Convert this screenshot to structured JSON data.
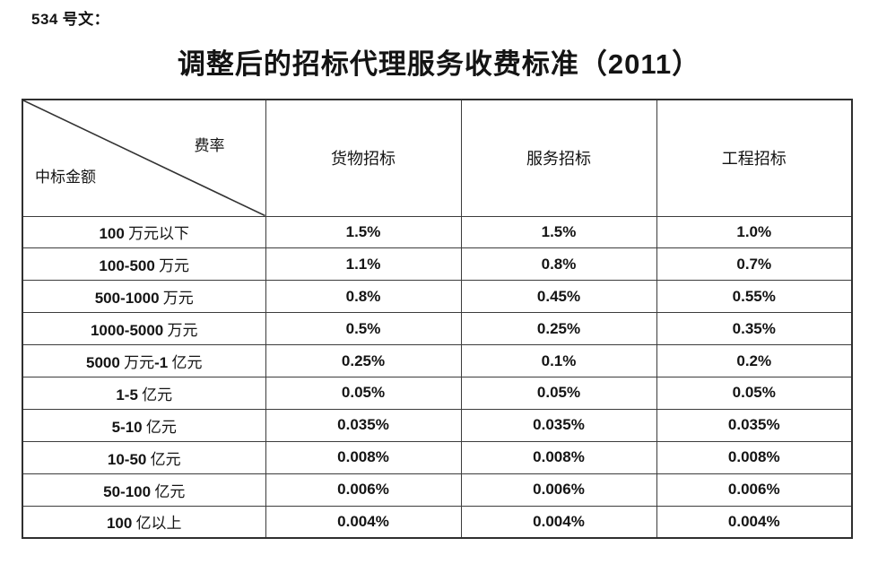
{
  "page": {
    "doc_label": "534 号文：",
    "title": "调整后的招标代理服务收费标准（2011）"
  },
  "colors": {
    "text": "#141414",
    "border": "#3c3c3c",
    "background": "#ffffff"
  },
  "table": {
    "corner": {
      "top_right": "费率",
      "bottom_left": "中标金额"
    },
    "columns": [
      "货物招标",
      "服务招标",
      "工程招标"
    ],
    "rows": [
      {
        "amount": "100 万元以下",
        "goods": "1.5%",
        "services": "1.5%",
        "engineering": "1.0%"
      },
      {
        "amount": "100-500 万元",
        "goods": "1.1%",
        "services": "0.8%",
        "engineering": "0.7%"
      },
      {
        "amount": "500-1000 万元",
        "goods": "0.8%",
        "services": "0.45%",
        "engineering": "0.55%"
      },
      {
        "amount": "1000-5000 万元",
        "goods": "0.5%",
        "services": "0.25%",
        "engineering": "0.35%"
      },
      {
        "amount": "5000 万元-1 亿元",
        "goods": "0.25%",
        "services": "0.1%",
        "engineering": "0.2%"
      },
      {
        "amount": "1-5 亿元",
        "goods": "0.05%",
        "services": "0.05%",
        "engineering": "0.05%"
      },
      {
        "amount": "5-10 亿元",
        "goods": "0.035%",
        "services": "0.035%",
        "engineering": "0.035%"
      },
      {
        "amount": "10-50 亿元",
        "goods": "0.008%",
        "services": "0.008%",
        "engineering": "0.008%"
      },
      {
        "amount": "50-100 亿元",
        "goods": "0.006%",
        "services": "0.006%",
        "engineering": "0.006%"
      },
      {
        "amount": "100 亿以上",
        "goods": "0.004%",
        "services": "0.004%",
        "engineering": "0.004%"
      }
    ]
  }
}
